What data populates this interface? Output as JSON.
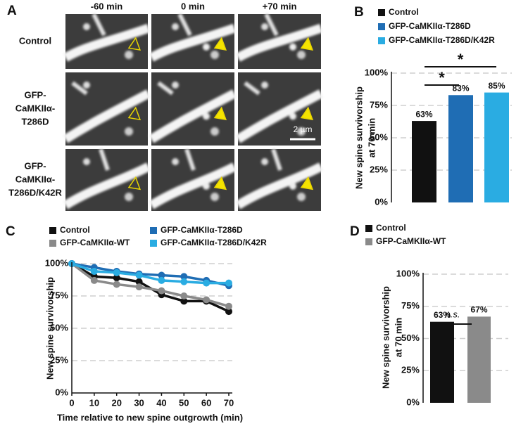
{
  "panel_a": {
    "label": "A",
    "columns": [
      "-60 min",
      "0 min",
      "+70 min"
    ],
    "rows": [
      [
        "Control"
      ],
      [
        "GFP-",
        "CaMKIIα-",
        "T286D"
      ],
      [
        "GFP-",
        "CaMKIIα-",
        "T286D/K42R"
      ]
    ],
    "scale_bar": "2 µm"
  },
  "chart_data": [
    {
      "type": "bar",
      "panel": "B",
      "ylabel": [
        "New spine survivorship",
        "at 70 min"
      ],
      "series": [
        {
          "name": "Control",
          "color": "#111111",
          "values": [
            63
          ],
          "value_labels": [
            "63%"
          ]
        },
        {
          "name": "GFP-CaMKIIα-T286D",
          "color": "#1f6db4",
          "values": [
            83
          ],
          "value_labels": [
            "83%"
          ]
        },
        {
          "name": "GFP-CaMKIIα-T286D/K42R",
          "color": "#2aace2",
          "values": [
            85
          ],
          "value_labels": [
            "85%"
          ]
        }
      ],
      "ylim": [
        0,
        100
      ],
      "yticks": [
        {
          "value": 0,
          "label": "0%"
        },
        {
          "value": 25,
          "label": "25%"
        },
        {
          "value": 50,
          "label": "50%"
        },
        {
          "value": 75,
          "label": "75%"
        },
        {
          "value": 100,
          "label": "100%"
        }
      ],
      "grid": true,
      "annotations": [
        {
          "text": "*",
          "pair": [
            0,
            1
          ]
        },
        {
          "text": "*",
          "pair": [
            0,
            2
          ]
        }
      ]
    },
    {
      "type": "line",
      "panel": "C",
      "xlabel": "Time relative to new spine outgrowth (min)",
      "ylabel": [
        "New spine survivorship"
      ],
      "x": [
        0,
        10,
        20,
        30,
        40,
        50,
        60,
        70
      ],
      "series": [
        {
          "name": "Control",
          "color": "#111111",
          "values": [
            100,
            90,
            89,
            86,
            76,
            71,
            71,
            63
          ]
        },
        {
          "name": "GFP-CaMKIIα-WT",
          "color": "#8a8a8a",
          "values": [
            100,
            87,
            84,
            82,
            79,
            75,
            72,
            67
          ]
        },
        {
          "name": "GFP-CaMKIIα-T286D",
          "color": "#1f6db4",
          "values": [
            100,
            97,
            94,
            92,
            91,
            90,
            87,
            83
          ]
        },
        {
          "name": "GFP-CaMKIIα-T286D/K42R",
          "color": "#2aace2",
          "values": [
            100,
            94,
            93,
            91,
            87,
            86,
            85,
            85
          ]
        }
      ],
      "xlim": [
        0,
        70
      ],
      "xticks": [
        0,
        10,
        20,
        30,
        40,
        50,
        60,
        70
      ],
      "ylim": [
        0,
        100
      ],
      "yticks": [
        {
          "value": 0,
          "label": "0%"
        },
        {
          "value": 25,
          "label": "25%"
        },
        {
          "value": 50,
          "label": "50%"
        },
        {
          "value": 75,
          "label": "75%"
        },
        {
          "value": 100,
          "label": "100%"
        }
      ],
      "grid": true
    },
    {
      "type": "bar",
      "panel": "D",
      "ylabel": [
        "New spine survivorship",
        "at 70 min"
      ],
      "series": [
        {
          "name": "Control",
          "color": "#111111",
          "values": [
            63
          ],
          "value_labels": [
            "63%"
          ]
        },
        {
          "name": "GFP-CaMKIIα-WT",
          "color": "#8a8a8a",
          "values": [
            67
          ],
          "value_labels": [
            "67%"
          ]
        }
      ],
      "ylim": [
        0,
        100
      ],
      "yticks": [
        {
          "value": 0,
          "label": "0%"
        },
        {
          "value": 25,
          "label": "25%"
        },
        {
          "value": 50,
          "label": "50%"
        },
        {
          "value": 75,
          "label": "75%"
        },
        {
          "value": 100,
          "label": "100%"
        }
      ],
      "grid": true,
      "annotations": [
        {
          "text": "n.s.",
          "pair": [
            0,
            1
          ]
        }
      ]
    }
  ]
}
